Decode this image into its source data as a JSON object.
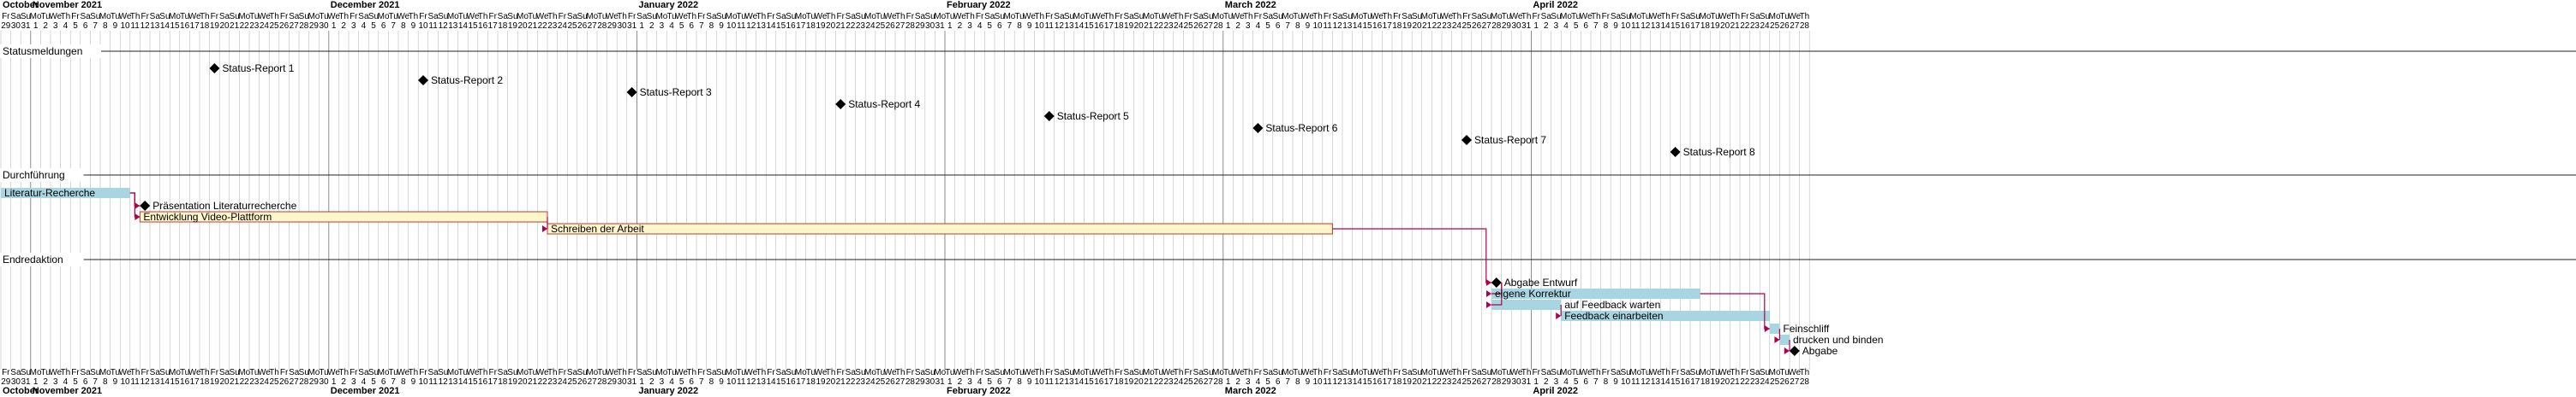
{
  "chart_data": {
    "type": "gantt",
    "date_range": [
      "2021-10-29",
      "2022-04-28"
    ],
    "months": [
      {
        "label": "October",
        "start": "2021-10-29"
      },
      {
        "label": "November 2021",
        "start": "2021-11-01"
      },
      {
        "label": "December 2021",
        "start": "2021-12-01"
      },
      {
        "label": "January 2022",
        "start": "2022-01-01"
      },
      {
        "label": "February 2022",
        "start": "2022-02-01"
      },
      {
        "label": "March 2022",
        "start": "2022-03-01"
      },
      {
        "label": "April 2022",
        "start": "2022-04-01"
      }
    ],
    "weekday_abbrev": [
      "Su",
      "Mo",
      "Tu",
      "We",
      "Th",
      "Fr",
      "Sa"
    ],
    "colors": {
      "bar_blue": "#a8d5e2",
      "bar_yellow": "#fff6cc",
      "bar_yellow_border": "#c0392b",
      "arrow": "#b0004a",
      "grid": "#bbbbbb",
      "section_line": "#222222"
    },
    "sections": [
      {
        "name": "Statusmeldungen",
        "tasks": [
          {
            "id": "s1",
            "label": "Status-Report 1",
            "type": "milestone",
            "start": "2021-11-19"
          },
          {
            "id": "s2",
            "label": "Status-Report 2",
            "type": "milestone",
            "start": "2021-12-10"
          },
          {
            "id": "s3",
            "label": "Status-Report 3",
            "type": "milestone",
            "start": "2021-12-31"
          },
          {
            "id": "s4",
            "label": "Status-Report 4",
            "type": "milestone",
            "start": "2022-01-21"
          },
          {
            "id": "s5",
            "label": "Status-Report 5",
            "type": "milestone",
            "start": "2022-02-11"
          },
          {
            "id": "s6",
            "label": "Status-Report 6",
            "type": "milestone",
            "start": "2022-03-04"
          },
          {
            "id": "s7",
            "label": "Status-Report 7",
            "type": "milestone",
            "start": "2022-03-25"
          },
          {
            "id": "s8",
            "label": "Status-Report 8",
            "type": "milestone",
            "start": "2022-04-15"
          }
        ]
      },
      {
        "name": "Durchführung",
        "tasks": [
          {
            "id": "d1",
            "label": "Literatur-Recherche",
            "type": "task",
            "style": "blue",
            "start": "2021-10-29",
            "end": "2021-11-11",
            "label_pos": "inside"
          },
          {
            "id": "d2",
            "label": "Präsentation Literaturrecherche",
            "type": "milestone",
            "start": "2021-11-12",
            "after": "d1"
          },
          {
            "id": "d3",
            "label": "Entwicklung Video-Plattform",
            "type": "task",
            "style": "yellow",
            "start": "2021-11-12",
            "end": "2021-12-23",
            "label_pos": "inside",
            "after": "d1"
          },
          {
            "id": "d4",
            "label": "Schreiben der Arbeit",
            "type": "task",
            "style": "yellow",
            "start": "2021-12-23",
            "end": "2022-03-12",
            "label_pos": "inside",
            "after": "d3"
          }
        ]
      },
      {
        "name": "Endredaktion",
        "tasks": [
          {
            "id": "e1",
            "label": "Abgabe Entwurf",
            "type": "milestone",
            "start": "2022-03-28",
            "after": "d4"
          },
          {
            "id": "e2",
            "label": "eigene Korrektur",
            "type": "task",
            "style": "blue",
            "start": "2022-03-28",
            "end": "2022-04-18",
            "label_pos": "inside",
            "after": "e1"
          },
          {
            "id": "e3",
            "label": "auf Feedback warten",
            "type": "task",
            "style": "blue",
            "start": "2022-03-28",
            "end": "2022-04-04",
            "label_pos": "right",
            "after": "e1"
          },
          {
            "id": "e4",
            "label": "Feedback einarbeiten",
            "type": "task",
            "style": "blue",
            "start": "2022-04-04",
            "end": "2022-04-25",
            "label_pos": "inside",
            "after": "e3"
          },
          {
            "id": "e5",
            "label": "Feinschliff",
            "type": "task",
            "style": "blue",
            "start": "2022-04-25",
            "end": "2022-04-26",
            "label_pos": "right",
            "after": "e2"
          },
          {
            "id": "e6",
            "label": "drucken und binden",
            "type": "task",
            "style": "blue",
            "start": "2022-04-26",
            "end": "2022-04-27",
            "label_pos": "right",
            "after": "e5"
          },
          {
            "id": "e7",
            "label": "Abgabe",
            "type": "milestone",
            "start": "2022-04-27",
            "after": "e6"
          }
        ]
      }
    ]
  }
}
